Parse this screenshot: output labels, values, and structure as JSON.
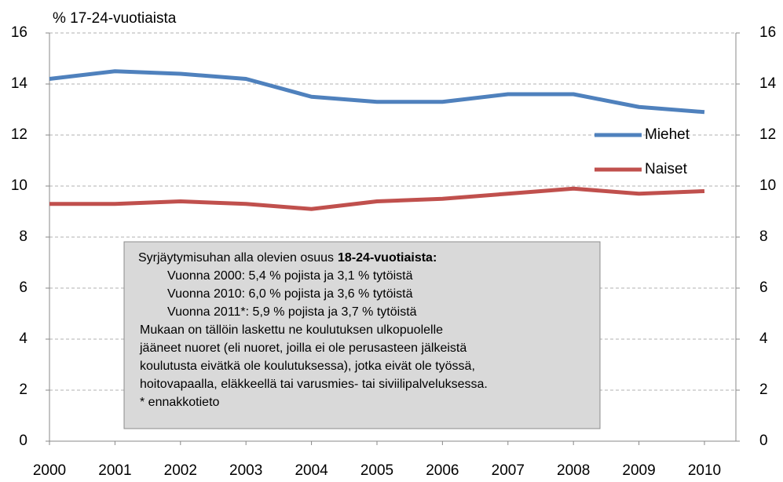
{
  "chart_data": {
    "type": "line",
    "ylabel": "% 17-24-vuotiaista",
    "x": [
      2000,
      2001,
      2002,
      2003,
      2004,
      2005,
      2006,
      2007,
      2008,
      2009,
      2010
    ],
    "xlim": [
      2000,
      2010.48
    ],
    "series": [
      {
        "name": "Miehet",
        "color": "#4f81bd",
        "values": [
          14.2,
          14.5,
          14.4,
          14.2,
          13.5,
          13.3,
          13.3,
          13.6,
          13.6,
          13.1,
          12.9
        ]
      },
      {
        "name": "Naiset",
        "color": "#c0504d",
        "values": [
          9.3,
          9.3,
          9.4,
          9.3,
          9.1,
          9.4,
          9.5,
          9.7,
          9.9,
          9.7,
          9.8
        ]
      }
    ],
    "ylim": [
      0,
      16
    ],
    "yticks": [
      0,
      2,
      4,
      6,
      8,
      10,
      12,
      14,
      16
    ],
    "y2lim": [
      0,
      16
    ],
    "y2ticks": [
      0,
      2,
      4,
      6,
      8,
      10,
      12,
      14,
      16
    ],
    "grid": true,
    "annotation": {
      "heading": "Syrjäytymisuhan alla olevien osuus",
      "heading_bold": "18-24-vuotiaista:",
      "items": [
        "Vuonna 2000: 5,4 % pojista ja 3,1 % tytöistä",
        "Vuonna 2010: 6,0 % pojista ja 3,6 % tytöistä",
        "Vuonna 2011*: 5,9 % pojista ja 3,7 % tytöistä"
      ],
      "lines": [
        "Mukaan on tällöin laskettu ne koulutuksen ulkopuolelle",
        "jääneet nuoret (eli nuoret, joilla ei ole  perusasteen jälkeistä",
        "koulutusta eivätkä ole koulutuksessa), jotka eivät ole työssä,",
        "hoitovapaalla,  eläkkeellä tai varusmies- tai siviilipalveluksessa.",
        "* ennakkotieto"
      ]
    }
  }
}
